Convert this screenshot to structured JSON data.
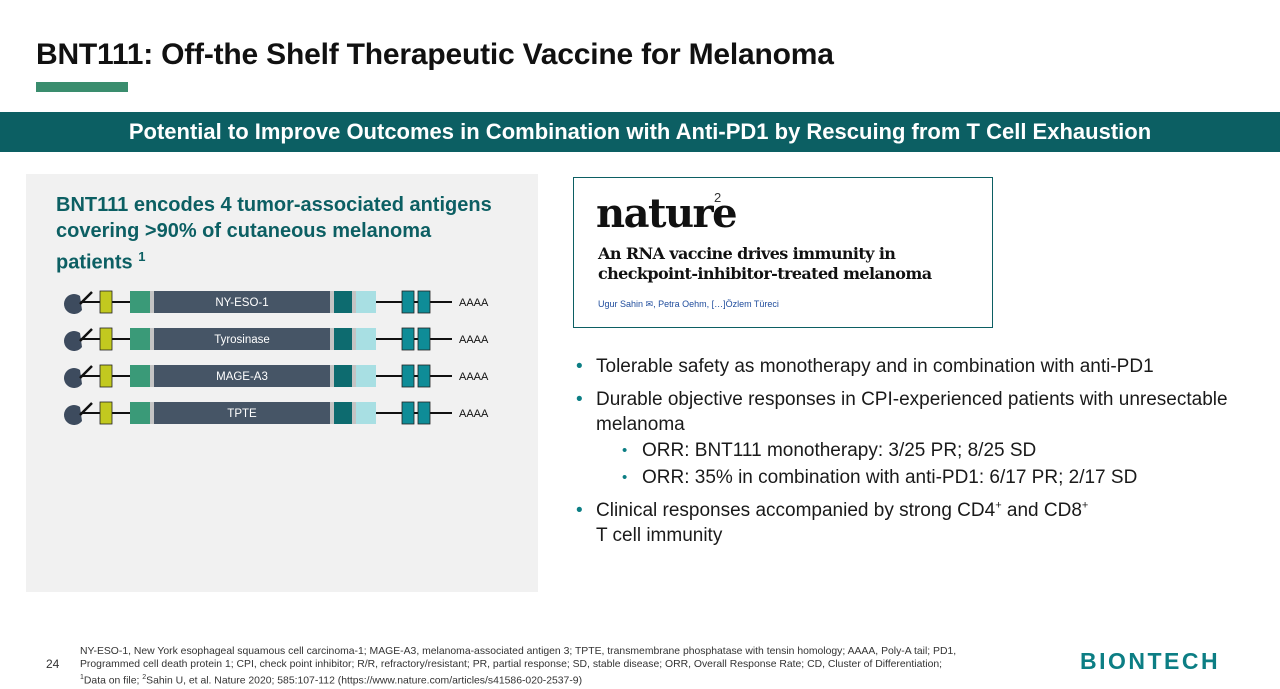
{
  "title": "BNT111: Off-the Shelf Therapeutic Vaccine for Melanoma",
  "banner": "Potential to Improve Outcomes in Combination with Anti-PD1 by Rescuing from T Cell Exhaustion",
  "left_panel": {
    "heading": "BNT111 encodes 4 tumor-associated antigens covering >90% of cutaneous melanoma patients",
    "heading_sup": "1",
    "constructs": [
      {
        "label": "NY-ESO-1",
        "tail": "AAAA"
      },
      {
        "label": "Tyrosinase",
        "tail": "AAAA"
      },
      {
        "label": "MAGE-A3",
        "tail": "AAAA"
      },
      {
        "label": "TPTE",
        "tail": "AAAA"
      }
    ],
    "colors": {
      "cap": "#3d4b5e",
      "utr5": "#c2c91f",
      "signal": "#3a9a78",
      "antigen": "#465566",
      "mitd": "#0d6b6f",
      "separator": "#c4c4c4",
      "utr3": "#a8dfe3",
      "tail_box": "#0f8c97"
    }
  },
  "nature": {
    "logo": "nature",
    "sup": "2",
    "headline": "An RNA vaccine drives immunity in checkpoint-inhibitor-treated melanoma",
    "authors": "Ugur Sahin ✉, Petra Oehm, […]Özlem Türeci"
  },
  "bullets": {
    "b1": "Tolerable safety as monotherapy and in combination with anti-PD1",
    "b2": "Durable objective responses in CPI-experienced patients with unresectable melanoma",
    "b2_sub1": "ORR: BNT111 monotherapy: 3/25 PR; 8/25 SD",
    "b2_sub2": "ORR: 35% in combination with anti-PD1: 6/17 PR; 2/17 SD",
    "b3_part1": "Clinical responses accompanied by strong CD4",
    "b3_sup1": "+",
    "b3_part2": " and CD8",
    "b3_sup2": "+",
    "b3_part3": "T cell immunity"
  },
  "footer": {
    "page_number": "24",
    "footnote_line1": "NY-ESO-1, New York esophageal squamous cell carcinoma-1; MAGE-A3, melanoma-associated antigen 3; TPTE, transmembrane phosphatase with tensin homology; AAAA, Poly-A tail; PD1,",
    "footnote_line2": "Programmed cell death protein 1; CPI, check point inhibitor; R/R, refractory/resistant; PR, partial response; SD, stable disease; ORR, Overall Response Rate; CD, Cluster of Differentiation;",
    "footnote_sup1": "1",
    "footnote_part1": "Data on file; ",
    "footnote_sup2": "2",
    "footnote_part2": "Sahin U, et al. Nature 2020; 585:107-112 (https://www.nature.com/articles/s41586-020-2537-9)",
    "logo": "BIONTECH"
  }
}
